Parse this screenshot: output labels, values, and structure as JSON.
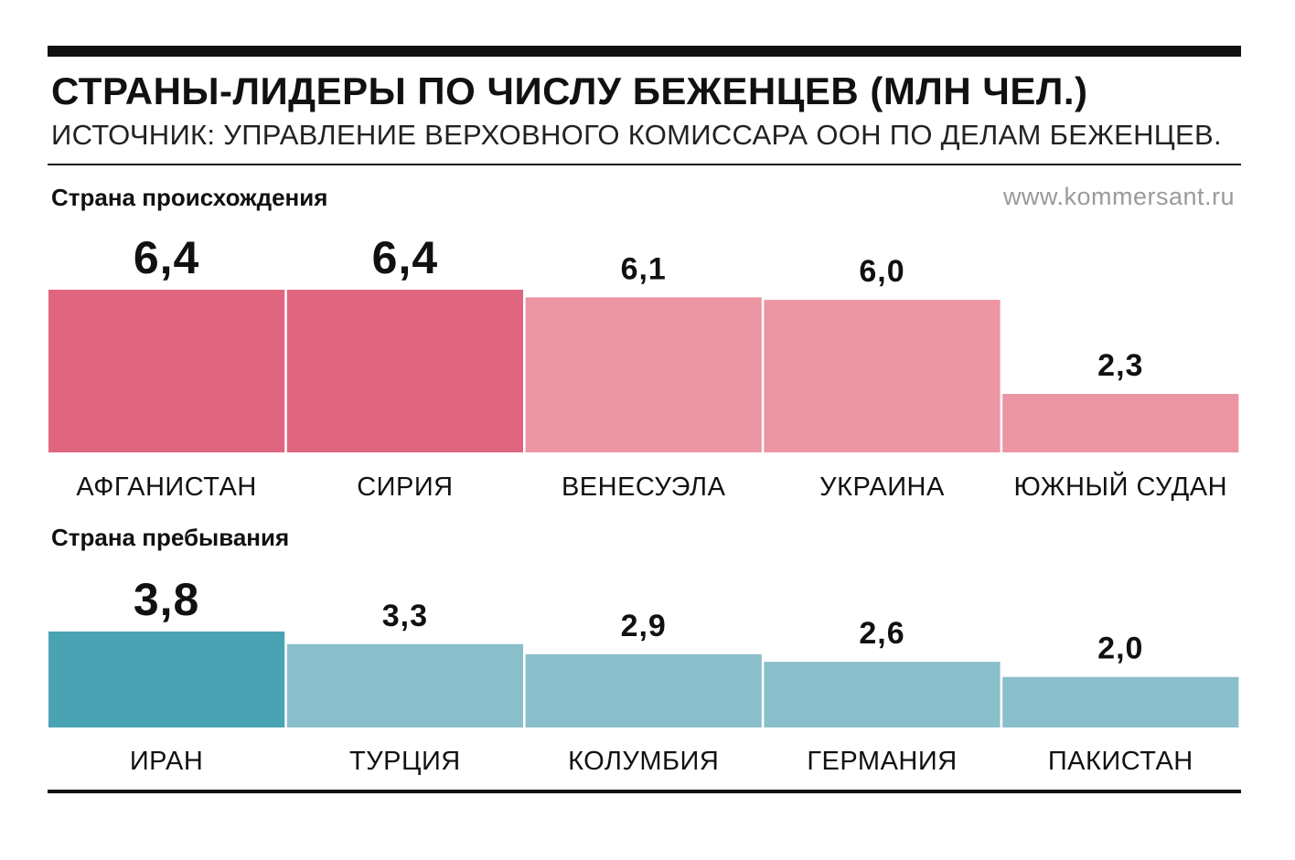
{
  "header": {
    "title": "СТРАНЫ-ЛИДЕРЫ ПО ЧИСЛУ БЕЖЕНЦЕВ (МЛН ЧЕЛ.)",
    "source": "ИСТОЧНИК: УПРАВЛЕНИЕ ВЕРХОВНОГО КОМИССАРА ООН ПО ДЕЛАМ БЕЖЕНЦЕВ.",
    "site": "www.kommersant.ru"
  },
  "chart_data": [
    {
      "type": "bar",
      "title": "Страна происхождения",
      "categories": [
        "АФГАНИСТАН",
        "СИРИЯ",
        "ВЕНЕСУЭЛА",
        "УКРАИНА",
        "ЮЖНЫЙ СУДАН"
      ],
      "values": [
        6.4,
        6.4,
        6.1,
        6.0,
        2.3
      ],
      "labels": [
        "6,4",
        "6,4",
        "6,1",
        "6,0",
        "2,3"
      ],
      "highlight": [
        true,
        true,
        false,
        false,
        false
      ],
      "colors": {
        "highlight": "#e0667f",
        "normal": "#ec95a3"
      },
      "ylim": [
        0,
        6.4
      ],
      "xlabel": "",
      "ylabel": ""
    },
    {
      "type": "bar",
      "title": "Страна пребывания",
      "categories": [
        "ИРАН",
        "ТУРЦИЯ",
        "КОЛУМБИЯ",
        "ГЕРМАНИЯ",
        "ПАКИСТАН"
      ],
      "values": [
        3.8,
        3.3,
        2.9,
        2.6,
        2.0
      ],
      "labels": [
        "3,8",
        "3,3",
        "2,9",
        "2,6",
        "2,0"
      ],
      "highlight": [
        true,
        false,
        false,
        false,
        false
      ],
      "colors": {
        "highlight": "#4aa3b3",
        "normal": "#8bbecb"
      },
      "ylim": [
        0,
        3.8
      ],
      "xlabel": "",
      "ylabel": ""
    }
  ]
}
